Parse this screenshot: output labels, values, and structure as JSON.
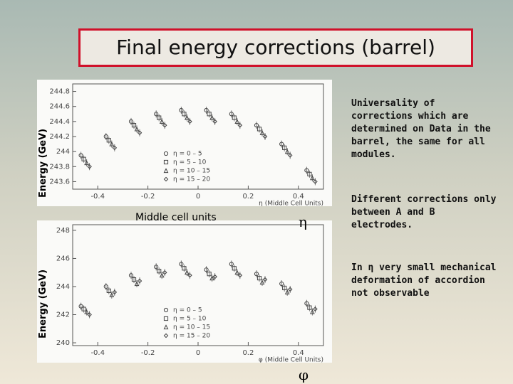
{
  "slide": {
    "title": "Final energy corrections (barrel)",
    "y_label_top": "Energy (GeV)",
    "y_label_bottom": "Energy (GeV)",
    "middle_label": "Middle cell units",
    "eta_symbol": "η",
    "phi_symbol": "φ",
    "notes": [
      "Universality of corrections which are determined on Data in the barrel, the same for all modules.",
      "Different corrections only between A and B electrodes.",
      "In η very small mechanical deformation of accordion not observable"
    ]
  },
  "chart_data": [
    {
      "type": "scatter",
      "xlabel": "η (Middle Cell Units)",
      "x": [
        -0.45,
        -0.35,
        -0.25,
        -0.15,
        -0.05,
        0.05,
        0.15,
        0.25,
        0.35,
        0.45
      ],
      "xlim": [
        -0.5,
        0.5
      ],
      "xticks": [
        -0.4,
        -0.2,
        0,
        0.2,
        0.4
      ],
      "ylim": [
        243.5,
        244.9
      ],
      "yticks": [
        243.6,
        243.8,
        244,
        244.2,
        244.4,
        244.6,
        244.8
      ],
      "series": [
        {
          "name": "η = 0 – 5",
          "marker": "circle",
          "color": "#444444",
          "values": [
            243.95,
            244.2,
            244.4,
            244.5,
            244.55,
            244.55,
            244.5,
            244.35,
            244.1,
            243.75
          ]
        },
        {
          "name": "η = 5 – 10",
          "marker": "square",
          "color": "#444444",
          "values": [
            243.9,
            244.15,
            244.35,
            244.45,
            244.5,
            244.5,
            244.45,
            244.3,
            244.05,
            243.7
          ]
        },
        {
          "name": "η = 10 – 15",
          "marker": "triangle",
          "color": "#444444",
          "values": [
            243.85,
            244.1,
            244.3,
            244.4,
            244.45,
            244.45,
            244.4,
            244.25,
            244.0,
            243.65
          ]
        },
        {
          "name": "η = 15 – 20",
          "marker": "diamond",
          "color": "#444444",
          "values": [
            243.8,
            244.05,
            244.25,
            244.35,
            244.4,
            244.4,
            244.35,
            244.2,
            243.95,
            243.6
          ]
        }
      ]
    },
    {
      "type": "scatter",
      "xlabel": "φ (Middle Cell Units)",
      "x": [
        -0.45,
        -0.35,
        -0.25,
        -0.15,
        -0.05,
        0.05,
        0.15,
        0.25,
        0.35,
        0.45
      ],
      "xlim": [
        -0.5,
        0.5
      ],
      "xticks": [
        -0.4,
        -0.2,
        0,
        0.2,
        0.4
      ],
      "ylim": [
        239.8,
        248.4
      ],
      "yticks": [
        240,
        242,
        244,
        246,
        248
      ],
      "series": [
        {
          "name": "η = 0 – 5",
          "marker": "circle",
          "color": "#444444",
          "values": [
            242.6,
            244.0,
            244.8,
            245.4,
            245.6,
            245.2,
            245.6,
            244.9,
            244.2,
            242.8
          ]
        },
        {
          "name": "η = 5 – 10",
          "marker": "square",
          "color": "#444444",
          "values": [
            242.4,
            243.7,
            244.5,
            245.1,
            245.3,
            244.9,
            245.3,
            244.6,
            243.9,
            242.5
          ]
        },
        {
          "name": "η = 10 – 15",
          "marker": "triangle",
          "color": "#444444",
          "values": [
            242.2,
            243.4,
            244.2,
            244.8,
            245.0,
            244.6,
            245.0,
            244.3,
            243.6,
            242.2
          ]
        },
        {
          "name": "η = 15 – 20",
          "marker": "diamond",
          "color": "#444444",
          "values": [
            242.0,
            243.6,
            244.4,
            245.0,
            244.8,
            244.7,
            244.8,
            244.5,
            243.8,
            242.4
          ]
        }
      ]
    }
  ]
}
